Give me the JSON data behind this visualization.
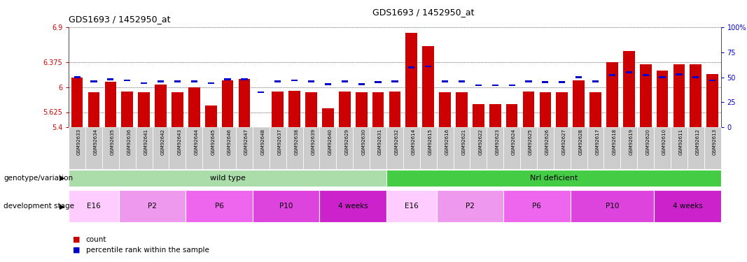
{
  "title": "GDS1693 / 1452950_at",
  "samples": [
    "GSM92633",
    "GSM92634",
    "GSM92635",
    "GSM92636",
    "GSM92641",
    "GSM92642",
    "GSM92643",
    "GSM92644",
    "GSM92645",
    "GSM92646",
    "GSM92647",
    "GSM92648",
    "GSM92637",
    "GSM92638",
    "GSM92639",
    "GSM92640",
    "GSM92629",
    "GSM92630",
    "GSM92631",
    "GSM92632",
    "GSM92614",
    "GSM92615",
    "GSM92616",
    "GSM92621",
    "GSM92622",
    "GSM92623",
    "GSM92624",
    "GSM92625",
    "GSM92626",
    "GSM92627",
    "GSM92628",
    "GSM92617",
    "GSM92618",
    "GSM92619",
    "GSM92620",
    "GSM92610",
    "GSM92611",
    "GSM92612",
    "GSM92613"
  ],
  "count_values": [
    6.15,
    5.92,
    6.08,
    5.94,
    5.93,
    6.04,
    5.93,
    6.0,
    5.72,
    6.1,
    6.12,
    5.4,
    5.94,
    5.95,
    5.92,
    5.68,
    5.94,
    5.92,
    5.93,
    5.94,
    6.82,
    6.62,
    5.93,
    5.93,
    5.75,
    5.75,
    5.75,
    5.94,
    5.93,
    5.93,
    6.1,
    5.93,
    6.38,
    6.55,
    6.35,
    6.25,
    6.35,
    6.35,
    6.2
  ],
  "percentile_values": [
    50,
    46,
    48,
    47,
    44,
    46,
    46,
    46,
    44,
    48,
    48,
    35,
    46,
    47,
    46,
    43,
    46,
    43,
    45,
    46,
    60,
    61,
    46,
    46,
    42,
    42,
    42,
    46,
    45,
    45,
    50,
    46,
    52,
    55,
    52,
    50,
    53,
    50,
    47
  ],
  "genotype_groups": [
    {
      "label": "wild type",
      "start": 0,
      "end": 19,
      "color": "#aaddaa"
    },
    {
      "label": "Nrl deficient",
      "start": 19,
      "end": 39,
      "color": "#44cc44"
    }
  ],
  "dev_stage_groups": [
    {
      "label": "E16",
      "start": 0,
      "end": 3,
      "color": "#ffccff"
    },
    {
      "label": "P2",
      "start": 3,
      "end": 7,
      "color": "#ee99ee"
    },
    {
      "label": "P6",
      "start": 7,
      "end": 11,
      "color": "#ee66ee"
    },
    {
      "label": "P10",
      "start": 11,
      "end": 15,
      "color": "#dd44dd"
    },
    {
      "label": "4 weeks",
      "start": 15,
      "end": 19,
      "color": "#cc22cc"
    },
    {
      "label": "E16",
      "start": 19,
      "end": 22,
      "color": "#ffccff"
    },
    {
      "label": "P2",
      "start": 22,
      "end": 26,
      "color": "#ee99ee"
    },
    {
      "label": "P6",
      "start": 26,
      "end": 30,
      "color": "#ee66ee"
    },
    {
      "label": "P10",
      "start": 30,
      "end": 35,
      "color": "#dd44dd"
    },
    {
      "label": "4 weeks",
      "start": 35,
      "end": 39,
      "color": "#cc22cc"
    }
  ],
  "ymin": 5.4,
  "ymax": 6.9,
  "yticks": [
    5.4,
    5.625,
    6.0,
    6.375,
    6.9
  ],
  "ytick_labels": [
    "5.4",
    "5.625",
    "6",
    "6.375",
    "6.9"
  ],
  "y2ticks": [
    0,
    25,
    50,
    75,
    100
  ],
  "y2tick_labels": [
    "0",
    "25",
    "50",
    "75",
    "100%"
  ],
  "bar_color": "#cc0000",
  "percentile_color": "#0000cc",
  "bar_bg_color": "#dddddd",
  "tick_box_color": "#cccccc",
  "label_row1": "genotype/variation",
  "label_row2": "development stage"
}
